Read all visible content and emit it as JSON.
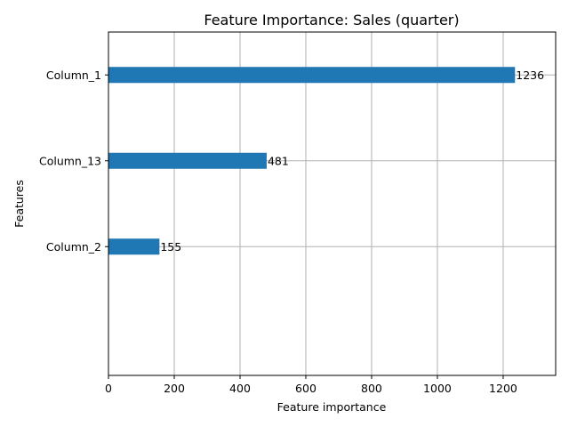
{
  "chart_data": {
    "type": "bar",
    "orientation": "horizontal",
    "title": "Feature Importance: Sales (quarter)",
    "xlabel": "Feature importance",
    "ylabel": "Features",
    "categories": [
      "Column_1",
      "Column_13",
      "Column_2"
    ],
    "values": [
      1236,
      481,
      155
    ],
    "value_labels": [
      "1236",
      "481",
      "155"
    ],
    "xlim": [
      0,
      1359.6
    ],
    "xticks": [
      0,
      200,
      400,
      600,
      800,
      1000,
      1200
    ],
    "xtick_labels": [
      "0",
      "200",
      "400",
      "600",
      "800",
      "1000",
      "1200"
    ],
    "ylim": [
      -0.5,
      3.5
    ],
    "grid": true,
    "bar_color": "#1f77b4"
  }
}
